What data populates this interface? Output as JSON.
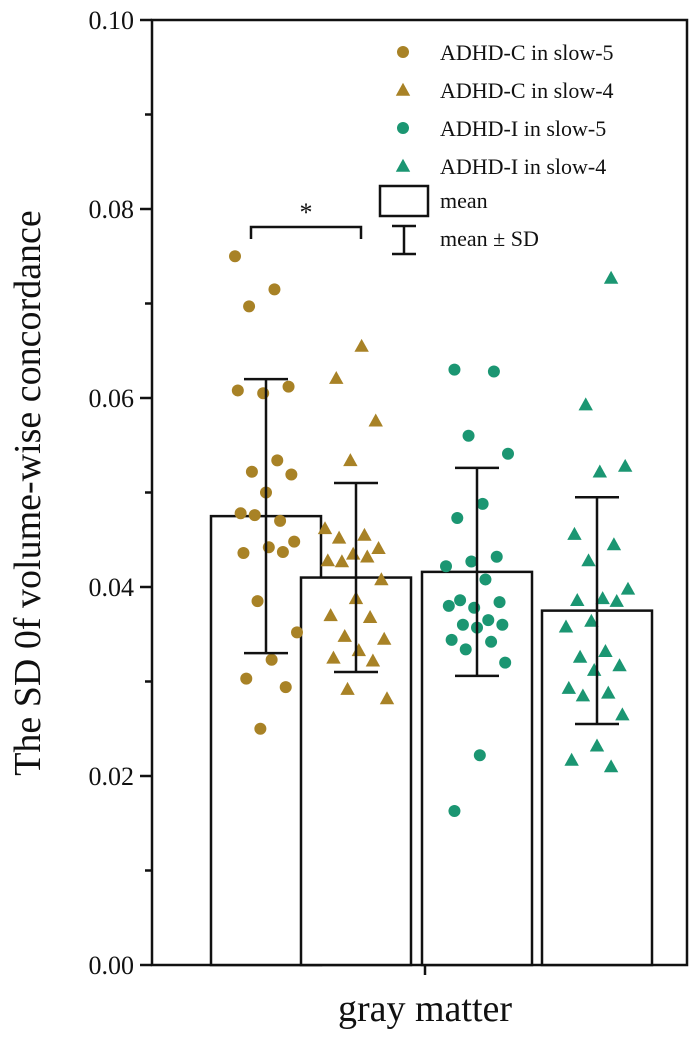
{
  "chart_data": {
    "type": "bar",
    "ylabel": "The SD 0f volume-wise concordance",
    "xlabel": "gray matter",
    "ylim": [
      0,
      0.1
    ],
    "yticks": [
      "0.00",
      "0.02",
      "0.04",
      "0.06",
      "0.08",
      "0.10"
    ],
    "categories": [
      "ADHD-C in slow-5",
      "ADHD-C in slow-4",
      "ADHD-I in slow-5",
      "ADHD-I in slow-4"
    ],
    "colors": {
      "adhd_c": "#a88226",
      "adhd_i": "#1b9672",
      "bar_edge": "#111111"
    },
    "series": [
      {
        "name": "ADHD-C in slow-5",
        "marker": "circle",
        "color": "#a88226",
        "mean": 0.0475,
        "sd": 0.0145,
        "points": [
          0.075,
          0.0715,
          0.0697,
          0.0612,
          0.0605,
          0.0608,
          0.0534,
          0.0522,
          0.0519,
          0.05,
          0.0478,
          0.047,
          0.0476,
          0.0448,
          0.0442,
          0.0436,
          0.0437,
          0.0385,
          0.0352,
          0.0323,
          0.0303,
          0.0294,
          0.025
        ]
      },
      {
        "name": "ADHD-C in slow-4",
        "marker": "triangle",
        "color": "#a88226",
        "mean": 0.041,
        "sd": 0.01,
        "points": [
          0.0655,
          0.0621,
          0.0576,
          0.0534,
          0.0462,
          0.0455,
          0.0452,
          0.0441,
          0.0435,
          0.0428,
          0.0432,
          0.0427,
          0.0408,
          0.0388,
          0.037,
          0.0368,
          0.0348,
          0.0345,
          0.0333,
          0.0325,
          0.0322,
          0.0292,
          0.0282
        ]
      },
      {
        "name": "ADHD-I in slow-5",
        "marker": "circle",
        "color": "#1b9672",
        "mean": 0.0416,
        "sd": 0.011,
        "points": [
          0.063,
          0.0628,
          0.056,
          0.0541,
          0.0488,
          0.0473,
          0.0432,
          0.0427,
          0.0422,
          0.0408,
          0.0386,
          0.0384,
          0.0378,
          0.038,
          0.0365,
          0.036,
          0.036,
          0.0357,
          0.0344,
          0.0342,
          0.0334,
          0.032,
          0.0222,
          0.0163
        ]
      },
      {
        "name": "ADHD-I in slow-4",
        "marker": "triangle",
        "color": "#1b9672",
        "mean": 0.0375,
        "sd": 0.012,
        "points": [
          0.0727,
          0.0593,
          0.0528,
          0.0522,
          0.0456,
          0.0445,
          0.0428,
          0.0398,
          0.0388,
          0.0386,
          0.0385,
          0.0364,
          0.0358,
          0.0332,
          0.0326,
          0.0317,
          0.0312,
          0.0293,
          0.0288,
          0.0285,
          0.0265,
          0.0232,
          0.0217,
          0.021
        ]
      }
    ],
    "legend": [
      {
        "label": "ADHD-C in slow-5",
        "marker": "circle",
        "color": "#a88226"
      },
      {
        "label": "ADHD-C in slow-4",
        "marker": "triangle",
        "color": "#a88226"
      },
      {
        "label": "ADHD-I in slow-5",
        "marker": "circle",
        "color": "#1b9672"
      },
      {
        "label": "ADHD-I in slow-4",
        "marker": "triangle",
        "color": "#1b9672"
      },
      {
        "label": "mean",
        "marker": "box"
      },
      {
        "label": "mean ± SD",
        "marker": "errorbar"
      }
    ],
    "annotation": {
      "text": "*",
      "from_series": 0,
      "to_series": 1,
      "level": 0.0781
    }
  }
}
